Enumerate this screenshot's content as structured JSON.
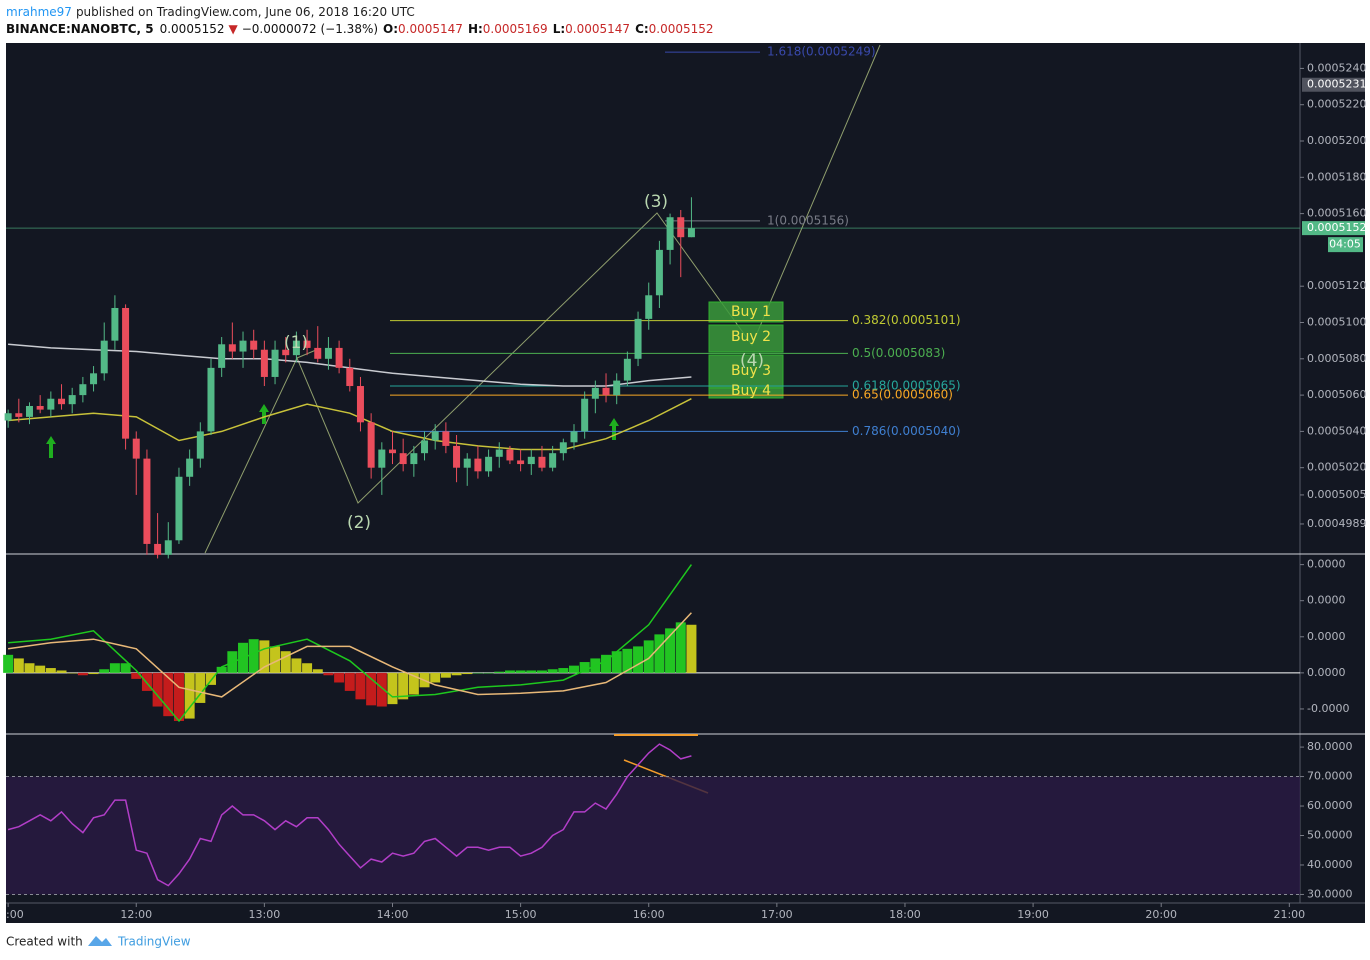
{
  "header": {
    "author": "mrahme97",
    "published": "published on TradingView.com, June 06, 2018 16:20 UTC",
    "symbol": "BINANCE:NANOBTC, 5",
    "last": "0.0005152",
    "arrow": "▼",
    "change": "−0.0000072 (−1.38%)",
    "ohlc": [
      {
        "key": "O:",
        "value": "0.0005147"
      },
      {
        "key": "H:",
        "value": "0.0005169"
      },
      {
        "key": "L:",
        "value": "0.0005147"
      },
      {
        "key": "C:",
        "value": "0.0005152"
      }
    ]
  },
  "chart_data": [
    {
      "type": "candlestick",
      "up_color": "#53b987",
      "down_color": "#eb4d5c",
      "xlim": [
        659,
        1265
      ],
      "ylim": [
        0.0004973,
        0.0005254
      ],
      "yticks": [
        {
          "value": 0.000524,
          "label": "0.0005240"
        },
        {
          "value": 0.000522,
          "label": "0.0005220"
        },
        {
          "value": 0.00052,
          "label": "0.0005200"
        },
        {
          "value": 0.000518,
          "label": "0.0005180"
        },
        {
          "value": 0.000516,
          "label": "0.0005160"
        },
        {
          "value": 0.000512,
          "label": "0.0005120"
        },
        {
          "value": 0.00051,
          "label": "0.0005100"
        },
        {
          "value": 0.000508,
          "label": "0.0005080"
        },
        {
          "value": 0.000506,
          "label": "0.0005060"
        },
        {
          "value": 0.000504,
          "label": "0.0005040"
        },
        {
          "value": 0.000502,
          "label": "0.0005020"
        },
        0.0005005,
        0.0004989
      ],
      "x": [
        660,
        665,
        670,
        675,
        680,
        685,
        690,
        695,
        700,
        705,
        710,
        715,
        720,
        725,
        730,
        735,
        740,
        745,
        750,
        755,
        760,
        765,
        770,
        775,
        780,
        785,
        790,
        795,
        800,
        805,
        810,
        815,
        820,
        825,
        830,
        835,
        840,
        845,
        850,
        855,
        860,
        865,
        870,
        875,
        880,
        885,
        890,
        895,
        900,
        905,
        910,
        915,
        920,
        925,
        930,
        935,
        940,
        945,
        950,
        955,
        960,
        965,
        970,
        975,
        980
      ],
      "open": [
        0.0005046,
        0.000505,
        0.0005048,
        0.0005054,
        0.0005052,
        0.0005058,
        0.0005055,
        0.000506,
        0.0005066,
        0.0005072,
        0.000509,
        0.0005108,
        0.0005036,
        0.0005025,
        0.0004978,
        0.0004972,
        0.000498,
        0.0005015,
        0.0005025,
        0.000504,
        0.0005075,
        0.0005088,
        0.0005084,
        0.000509,
        0.0005085,
        0.000507,
        0.0005085,
        0.0005082,
        0.000509,
        0.0005086,
        0.000508,
        0.0005086,
        0.0005075,
        0.0005065,
        0.0005045,
        0.000502,
        0.000503,
        0.0005028,
        0.0005022,
        0.0005028,
        0.0005035,
        0.000504,
        0.0005032,
        0.000502,
        0.0005025,
        0.0005018,
        0.0005026,
        0.000503,
        0.0005024,
        0.0005022,
        0.0005026,
        0.000502,
        0.0005028,
        0.0005034,
        0.000504,
        0.0005058,
        0.0005064,
        0.000506,
        0.0005068,
        0.000508,
        0.0005102,
        0.0005115,
        0.000514,
        0.0005158,
        0.0005147
      ],
      "high": [
        0.0005052,
        0.0005058,
        0.0005056,
        0.000506,
        0.0005062,
        0.0005066,
        0.0005064,
        0.000507,
        0.0005076,
        0.00051,
        0.0005115,
        0.000511,
        0.000504,
        0.000503,
        0.0004995,
        0.000499,
        0.000502,
        0.000503,
        0.0005045,
        0.000508,
        0.0005092,
        0.00051,
        0.0005095,
        0.0005096,
        0.000509,
        0.000509,
        0.0005092,
        0.0005095,
        0.0005096,
        0.0005098,
        0.0005092,
        0.000509,
        0.000508,
        0.000507,
        0.000505,
        0.0005034,
        0.000504,
        0.0005036,
        0.0005032,
        0.000504,
        0.0005044,
        0.0005045,
        0.0005038,
        0.0005028,
        0.0005032,
        0.000503,
        0.0005034,
        0.0005032,
        0.000503,
        0.000503,
        0.0005032,
        0.0005032,
        0.0005036,
        0.0005044,
        0.0005062,
        0.0005068,
        0.0005072,
        0.0005072,
        0.0005084,
        0.0005106,
        0.0005122,
        0.0005145,
        0.000516,
        0.0005162,
        0.0005169
      ],
      "low": [
        0.0005042,
        0.0005045,
        0.0005044,
        0.000505,
        0.0005048,
        0.0005052,
        0.000505,
        0.0005056,
        0.0005062,
        0.0005068,
        0.0005085,
        0.000503,
        0.0005005,
        0.0004972,
        0.000497,
        0.000497,
        0.0004978,
        0.000501,
        0.000502,
        0.0005038,
        0.000507,
        0.000508,
        0.0005075,
        0.000508,
        0.0005065,
        0.0005066,
        0.0005078,
        0.0005078,
        0.0005082,
        0.0005078,
        0.0005074,
        0.0005072,
        0.0005062,
        0.000504,
        0.0005014,
        0.0005005,
        0.0005022,
        0.0005018,
        0.0005015,
        0.0005024,
        0.000503,
        0.0005028,
        0.0005012,
        0.000501,
        0.0005014,
        0.0005015,
        0.000502,
        0.0005022,
        0.0005018,
        0.0005016,
        0.0005018,
        0.0005018,
        0.0005024,
        0.000503,
        0.0005036,
        0.000505,
        0.0005056,
        0.0005055,
        0.0005065,
        0.0005076,
        0.0005096,
        0.0005108,
        0.0005132,
        0.0005125,
        0.0005147
      ],
      "close": [
        0.000505,
        0.0005048,
        0.0005054,
        0.0005052,
        0.0005058,
        0.0005055,
        0.000506,
        0.0005066,
        0.0005072,
        0.000509,
        0.0005108,
        0.0005036,
        0.0005025,
        0.0004978,
        0.0004972,
        0.000498,
        0.0005015,
        0.0005025,
        0.000504,
        0.0005075,
        0.0005088,
        0.0005084,
        0.000509,
        0.0005085,
        0.000507,
        0.0005085,
        0.0005082,
        0.000509,
        0.0005086,
        0.000508,
        0.0005086,
        0.0005075,
        0.0005065,
        0.0005045,
        0.000502,
        0.000503,
        0.0005028,
        0.0005022,
        0.0005028,
        0.0005035,
        0.000504,
        0.0005032,
        0.000502,
        0.0005025,
        0.0005018,
        0.0005026,
        0.000503,
        0.0005024,
        0.0005022,
        0.0005026,
        0.000502,
        0.0005028,
        0.0005034,
        0.000504,
        0.0005058,
        0.0005064,
        0.000506,
        0.0005068,
        0.000508,
        0.0005102,
        0.0005115,
        0.000514,
        0.0005158,
        0.0005147,
        0.0005152
      ],
      "lines": [
        {
          "color": "#c9cbd1",
          "x": [
            660,
            680,
            700,
            720,
            740,
            760,
            780,
            800,
            820,
            840,
            860,
            880,
            900,
            920,
            940,
            960,
            980
          ],
          "values": [
            0.0005088,
            0.0005086,
            0.0005085,
            0.0005084,
            0.0005082,
            0.000508,
            0.000508,
            0.0005078,
            0.0005075,
            0.0005072,
            0.000507,
            0.0005068,
            0.0005066,
            0.0005065,
            0.0005065,
            0.0005068,
            0.000507
          ]
        },
        {
          "color": "#c8c23a",
          "x": [
            660,
            680,
            700,
            720,
            740,
            760,
            780,
            800,
            820,
            840,
            860,
            880,
            900,
            920,
            940,
            960,
            980
          ],
          "values": [
            0.0005046,
            0.0005048,
            0.000505,
            0.0005048,
            0.0005035,
            0.000504,
            0.0005048,
            0.0005055,
            0.000505,
            0.000504,
            0.0005035,
            0.0005032,
            0.000503,
            0.000503,
            0.0005036,
            0.0005046,
            0.0005058
          ]
        }
      ],
      "fib_levels": [
        {
          "value": 0.0005249,
          "label": "1.618(0.0005249)",
          "color": "#3949ab"
        },
        {
          "value": 0.0005156,
          "label": "1(0.0005156)",
          "color": "#787b86"
        },
        {
          "value": 0.0005101,
          "label": "0.382(0.0005101)",
          "color": "#c0ca33"
        },
        {
          "value": 0.0005083,
          "label": "0.5(0.0005083)",
          "color": "#4caf50"
        },
        {
          "value": 0.0005065,
          "label": "0.618(0.0005065)",
          "color": "#26a69a"
        },
        {
          "value": 0.000506,
          "label": "0.65(0.0005060)",
          "color": "#f9a825"
        },
        {
          "value": 0.000504,
          "label": "0.786(0.0005040)",
          "color": "#3f7fd0"
        }
      ],
      "waves": [
        "(1)",
        "(2)",
        "(3)",
        "(4)"
      ],
      "zones": [
        "Buy 1",
        "Buy 2",
        "Buy 3",
        "Buy 4"
      ],
      "price_labels": [
        {
          "value": 0.0005231,
          "label": "0.0005231",
          "color": "#50535e"
        },
        {
          "value": 0.0005152,
          "label": "0.0005152",
          "color": "#53b987",
          "countdown": "04:05",
          "line": true
        }
      ]
    },
    {
      "type": "bar",
      "xlim": [
        659,
        1265
      ],
      "ylim": [
        -5e-07,
        9.8e-07
      ],
      "yticks": [
        {
          "value": 9e-07,
          "label": "0.0000"
        },
        {
          "value": 6e-07,
          "label": "0.0000"
        },
        {
          "value": 3e-07,
          "label": "0.0000"
        },
        {
          "value": 0,
          "label": "0.0000"
        },
        {
          "value": -3e-07,
          "label": "-0.0000"
        }
      ],
      "grow_color": "#22c422",
      "fade_color": "#c4c41c",
      "drop_color": "#c41c1c",
      "x": [
        660,
        665,
        670,
        675,
        680,
        685,
        690,
        695,
        700,
        705,
        710,
        715,
        720,
        725,
        730,
        735,
        740,
        745,
        750,
        755,
        760,
        765,
        770,
        775,
        780,
        785,
        790,
        795,
        800,
        805,
        810,
        815,
        820,
        825,
        830,
        835,
        840,
        845,
        850,
        855,
        860,
        865,
        870,
        875,
        880,
        885,
        890,
        895,
        900,
        905,
        910,
        915,
        920,
        925,
        930,
        935,
        940,
        945,
        950,
        955,
        960,
        965,
        970,
        975,
        980
      ],
      "values": [
        1.5e-07,
        1.2e-07,
        8e-08,
        6e-08,
        4e-08,
        2e-08,
        0,
        -2e-08,
        -1e-08,
        3e-08,
        8e-08,
        8e-08,
        -5e-08,
        -1.5e-07,
        -2.8e-07,
        -3.6e-07,
        -4e-07,
        -3.8e-07,
        -2.5e-07,
        -1e-07,
        5e-08,
        1.8e-07,
        2.5e-07,
        2.8e-07,
        2.7e-07,
        2.2e-07,
        1.8e-07,
        1.2e-07,
        8e-08,
        3e-08,
        -2e-08,
        -8e-08,
        -1.5e-07,
        -2.2e-07,
        -2.7e-07,
        -2.8e-07,
        -2.6e-07,
        -2.2e-07,
        -1.8e-07,
        -1.2e-07,
        -8e-08,
        -4e-08,
        -2e-08,
        -1e-08,
        0,
        0,
        1e-08,
        2e-08,
        2e-08,
        2e-08,
        2e-08,
        3e-08,
        4e-08,
        6e-08,
        9e-08,
        1.2e-07,
        1.5e-07,
        1.8e-07,
        2e-07,
        2.2e-07,
        2.7e-07,
        3.2e-07,
        3.7e-07,
        4.2e-07,
        4e-07
      ],
      "lines": [
        {
          "color": "#1ec81e",
          "x": [
            660,
            680,
            700,
            720,
            740,
            760,
            780,
            800,
            820,
            840,
            860,
            880,
            900,
            920,
            940,
            960,
            980
          ],
          "values": [
            2.5e-07,
            2.8e-07,
            3.5e-07,
            2e-08,
            -4e-07,
            5e-08,
            2e-07,
            2.8e-07,
            1e-07,
            -2e-07,
            -1.8e-07,
            -1.2e-07,
            -1e-07,
            -6e-08,
            1e-07,
            4e-07,
            9e-07
          ]
        },
        {
          "color": "#e8b878",
          "x": [
            660,
            680,
            700,
            720,
            740,
            760,
            780,
            800,
            820,
            840,
            860,
            880,
            900,
            920,
            940,
            960,
            980
          ],
          "values": [
            2e-07,
            2.5e-07,
            2.8e-07,
            2e-07,
            -1.2e-07,
            -2e-07,
            5e-08,
            2.2e-07,
            2.2e-07,
            5e-08,
            -1e-07,
            -1.8e-07,
            -1.7e-07,
            -1.5e-07,
            -8e-08,
            1.2e-07,
            5e-07
          ]
        }
      ]
    },
    {
      "type": "line",
      "xlim": [
        659,
        1265
      ],
      "ylim": [
        27.1,
        84.1
      ],
      "color": "#b23ec8",
      "band": [
        30,
        70
      ],
      "yticks": [
        {
          "value": 80,
          "label": "80.0000"
        },
        {
          "value": 70,
          "label": "70.0000"
        },
        {
          "value": 60,
          "label": "60.0000"
        },
        {
          "value": 50,
          "label": "50.0000"
        },
        {
          "value": 40,
          "label": "40.0000"
        },
        {
          "value": 30,
          "label": "30.0000"
        }
      ],
      "xticks": [
        {
          "value": 660,
          "label": ":00"
        },
        {
          "value": 720,
          "label": "12:00"
        },
        {
          "value": 780,
          "label": "13:00"
        },
        {
          "value": 840,
          "label": "14:00"
        },
        {
          "value": 900,
          "label": "15:00"
        },
        {
          "value": 960,
          "label": "16:00"
        },
        {
          "value": 1020,
          "label": "17:00"
        },
        {
          "value": 1080,
          "label": "18:00"
        },
        {
          "value": 1140,
          "label": "19:00"
        },
        {
          "value": 1200,
          "label": "20:00"
        },
        {
          "value": 1260,
          "label": "21:00"
        }
      ],
      "x": [
        660,
        665,
        670,
        675,
        680,
        685,
        690,
        695,
        700,
        705,
        710,
        715,
        720,
        725,
        730,
        735,
        740,
        745,
        750,
        755,
        760,
        765,
        770,
        775,
        780,
        785,
        790,
        795,
        800,
        805,
        810,
        815,
        820,
        825,
        830,
        835,
        840,
        845,
        850,
        855,
        860,
        865,
        870,
        875,
        880,
        885,
        890,
        895,
        900,
        905,
        910,
        915,
        920,
        925,
        930,
        935,
        940,
        945,
        950,
        955,
        960,
        965,
        970,
        975,
        980
      ],
      "values": [
        52,
        53,
        55,
        57,
        55,
        58,
        54,
        51,
        56,
        57,
        62,
        62,
        45,
        44,
        35,
        33,
        37,
        42,
        49,
        48,
        57,
        60,
        57,
        57,
        55,
        52,
        55,
        53,
        56,
        56,
        52,
        47,
        43,
        39,
        42,
        41,
        44,
        43,
        44,
        48,
        49,
        46,
        43,
        46,
        46,
        45,
        46,
        46,
        43,
        44,
        46,
        50,
        52,
        58,
        58,
        61,
        59,
        64,
        70,
        74,
        78,
        81,
        79,
        76,
        77
      ]
    }
  ],
  "footer": {
    "created": "Created with",
    "brand": "TradingView"
  }
}
